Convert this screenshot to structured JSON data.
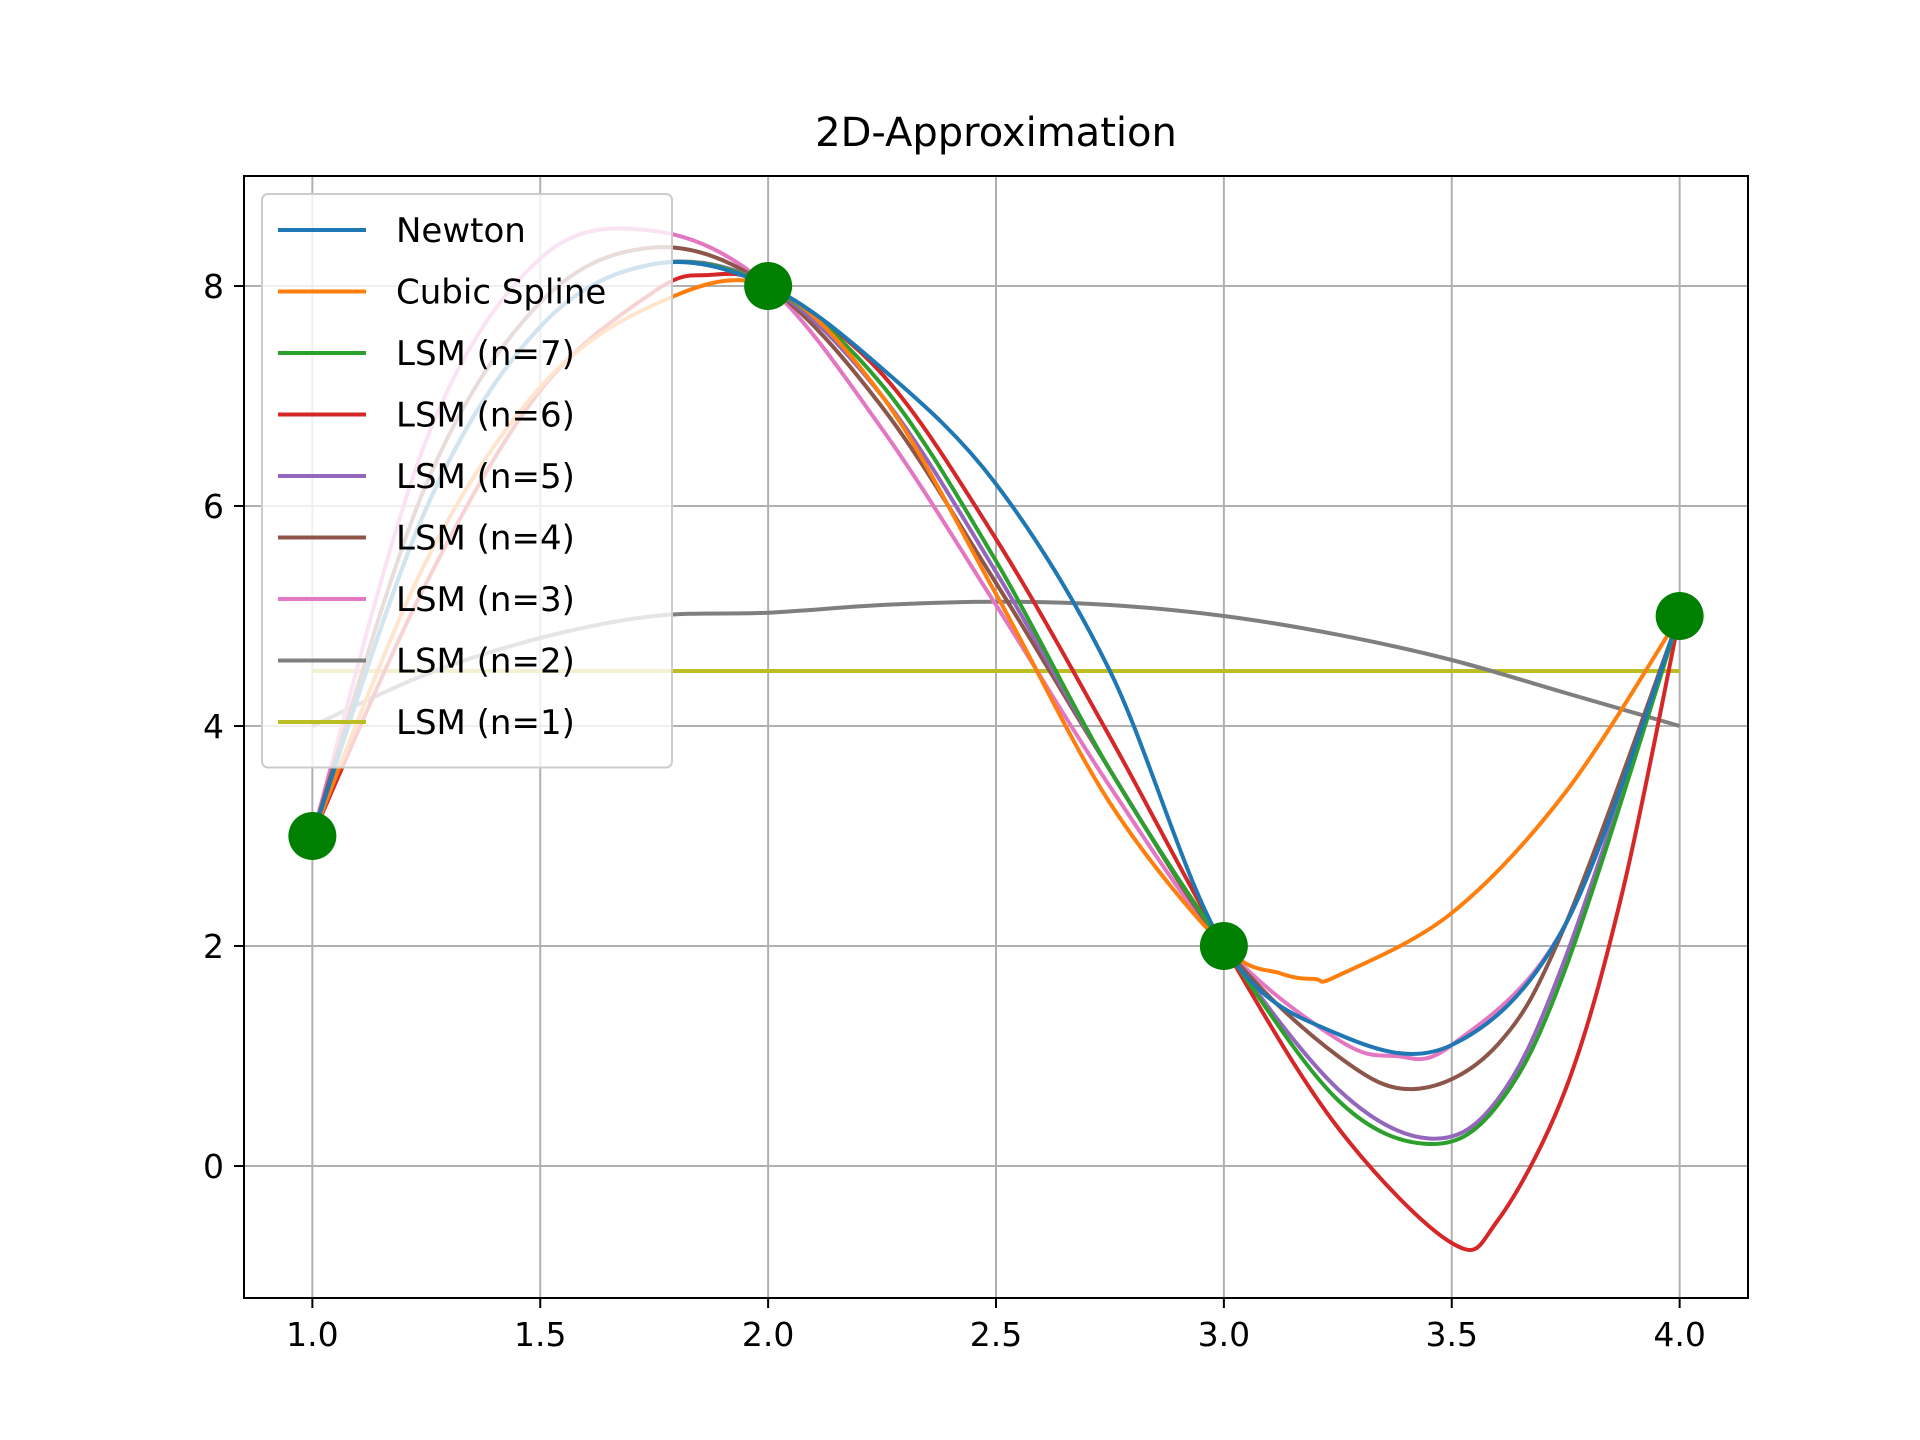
{
  "chart_data": {
    "type": "line",
    "title": "2D-Approximation",
    "xlabel": "",
    "ylabel": "",
    "xlim": [
      0.85,
      4.15
    ],
    "ylim": [
      -1.2,
      9.0
    ],
    "xticks": [
      1.0,
      1.5,
      2.0,
      2.5,
      3.0,
      3.5,
      4.0
    ],
    "xtick_labels": [
      "1.0",
      "1.5",
      "2.0",
      "2.5",
      "3.0",
      "3.5",
      "4.0"
    ],
    "yticks": [
      0,
      2,
      4,
      6,
      8
    ],
    "ytick_labels": [
      "0",
      "2",
      "4",
      "6",
      "8"
    ],
    "grid": true,
    "legend_position": "upper-left",
    "points": {
      "x": [
        1,
        2,
        3,
        4
      ],
      "y": [
        3,
        8,
        2,
        5
      ],
      "color": "#008000"
    },
    "series": [
      {
        "name": "Newton",
        "color": "#1f77b4",
        "x": [
          1.0,
          1.25,
          1.5,
          1.75,
          2.0,
          2.25,
          2.5,
          2.75,
          3.0,
          3.25,
          3.5,
          3.75,
          4.0
        ],
        "y": [
          3.0,
          5.98,
          7.63,
          8.2,
          8.0,
          7.25,
          6.2,
          4.5,
          2.0,
          1.2,
          1.1,
          2.2,
          5.0
        ]
      },
      {
        "name": "Cubic Spline",
        "color": "#ff7f0e",
        "x": [
          1.0,
          1.25,
          1.5,
          1.75,
          2.0,
          2.25,
          2.5,
          2.75,
          3.0,
          3.125,
          3.2,
          3.25,
          3.5,
          3.75,
          4.0
        ],
        "y": [
          3.0,
          5.5,
          7.08,
          7.83,
          8.0,
          7.0,
          5.2,
          3.3,
          2.0,
          1.75,
          1.7,
          1.73,
          2.3,
          3.4,
          5.0
        ]
      },
      {
        "name": "LSM (n=7)",
        "color": "#2ca02c",
        "x": [
          1.0,
          1.25,
          1.5,
          1.75,
          2.0,
          2.25,
          2.5,
          2.75,
          3.0,
          3.25,
          3.45,
          3.6,
          3.75,
          4.0
        ],
        "y": [
          3.0,
          5.98,
          7.63,
          8.2,
          8.0,
          7.1,
          5.5,
          3.6,
          2.0,
          0.6,
          0.2,
          0.55,
          1.8,
          5.0
        ]
      },
      {
        "name": "LSM (n=6)",
        "color": "#d62728",
        "x": [
          1.0,
          1.25,
          1.5,
          1.75,
          1.87,
          2.0,
          2.25,
          2.5,
          2.75,
          3.0,
          3.25,
          3.5,
          3.6,
          3.75,
          3.875,
          4.0
        ],
        "y": [
          3.0,
          5.3,
          7.05,
          7.95,
          8.1,
          8.0,
          7.2,
          5.7,
          3.9,
          2.0,
          0.35,
          -0.7,
          -0.5,
          0.7,
          2.5,
          5.0
        ]
      },
      {
        "name": "LSM (n=5)",
        "color": "#9467bd",
        "x": [
          1.0,
          1.25,
          1.5,
          1.75,
          2.0,
          2.25,
          2.5,
          2.75,
          3.0,
          3.25,
          3.45,
          3.6,
          3.75,
          4.0
        ],
        "y": [
          3.0,
          5.98,
          7.63,
          8.2,
          8.0,
          7.0,
          5.4,
          3.6,
          2.0,
          0.7,
          0.25,
          0.6,
          1.9,
          5.0
        ]
      },
      {
        "name": "LSM (n=4)",
        "color": "#8c564b",
        "x": [
          1.0,
          1.25,
          1.5,
          1.75,
          2.0,
          2.25,
          2.5,
          2.75,
          3.0,
          3.25,
          3.42,
          3.6,
          3.75,
          4.0
        ],
        "y": [
          3.0,
          6.2,
          7.85,
          8.35,
          8.0,
          6.9,
          5.3,
          3.6,
          2.0,
          1.0,
          0.7,
          1.1,
          2.2,
          5.0
        ]
      },
      {
        "name": "LSM (n=3)",
        "color": "#e377c2",
        "x": [
          1.0,
          1.25,
          1.5,
          1.75,
          2.0,
          2.25,
          2.5,
          2.75,
          3.0,
          3.25,
          3.375,
          3.5,
          3.75,
          4.0
        ],
        "y": [
          3.0,
          6.6,
          8.25,
          8.5,
          8.0,
          6.7,
          5.1,
          3.45,
          2.0,
          1.15,
          1.0,
          1.1,
          2.2,
          5.0
        ]
      },
      {
        "name": "LSM (n=2)",
        "color": "#7f7f7f",
        "x": [
          1.0,
          1.25,
          1.5,
          1.75,
          2.0,
          2.25,
          2.5,
          2.75,
          3.0,
          3.25,
          3.5,
          3.75,
          4.0
        ],
        "y": [
          4.0,
          4.47,
          4.8,
          5.0,
          5.03,
          5.1,
          5.13,
          5.1,
          5.0,
          4.83,
          4.6,
          4.3,
          4.0
        ]
      },
      {
        "name": "LSM (n=1)",
        "color": "#bcbd22",
        "x": [
          1.0,
          4.0
        ],
        "y": [
          4.5,
          4.5
        ]
      }
    ]
  }
}
